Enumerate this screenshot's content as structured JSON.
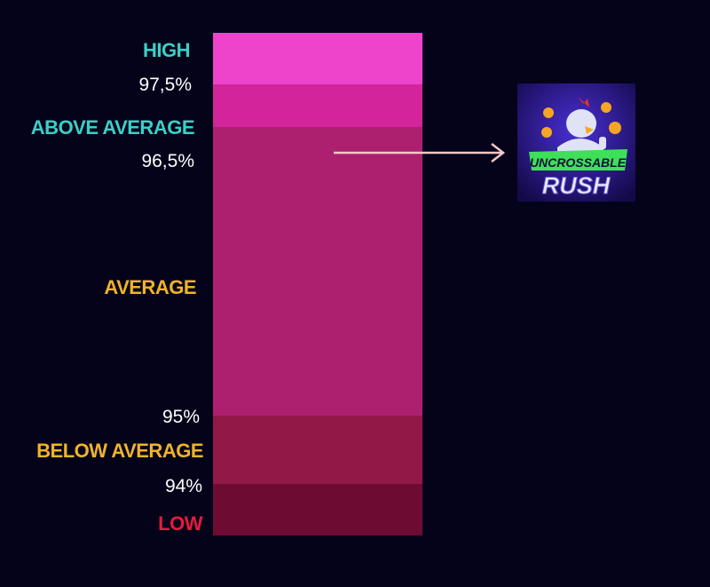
{
  "levels": [
    {
      "label": "HIGH",
      "label_color": "#3ccfc8",
      "color": "#ee44cc"
    },
    {
      "color": "#d3249b"
    },
    {
      "label": "ABOVE AVERAGE",
      "label_color": "#3ccfc8",
      "color": "#ad206f"
    },
    {
      "label": "AVERAGE",
      "label_color": "#f0b429",
      "color": "#ad206f"
    },
    {
      "label": "BELOW AVERAGE",
      "label_color": "#f0b429",
      "color": "#921848"
    },
    {
      "label": "LOW",
      "label_color": "#e8193c",
      "color": "#6d0b33"
    }
  ],
  "thresholds": [
    "97,5%",
    "96,5%",
    "95%",
    "94%"
  ],
  "game": {
    "title_line1": "UNCROSSABLE",
    "title_line2": "RUSH",
    "icon": "chicken-game-logo"
  },
  "arrow": {
    "color": "#f2c9c9",
    "points_to": "AVERAGE"
  },
  "background": "#05031a"
}
